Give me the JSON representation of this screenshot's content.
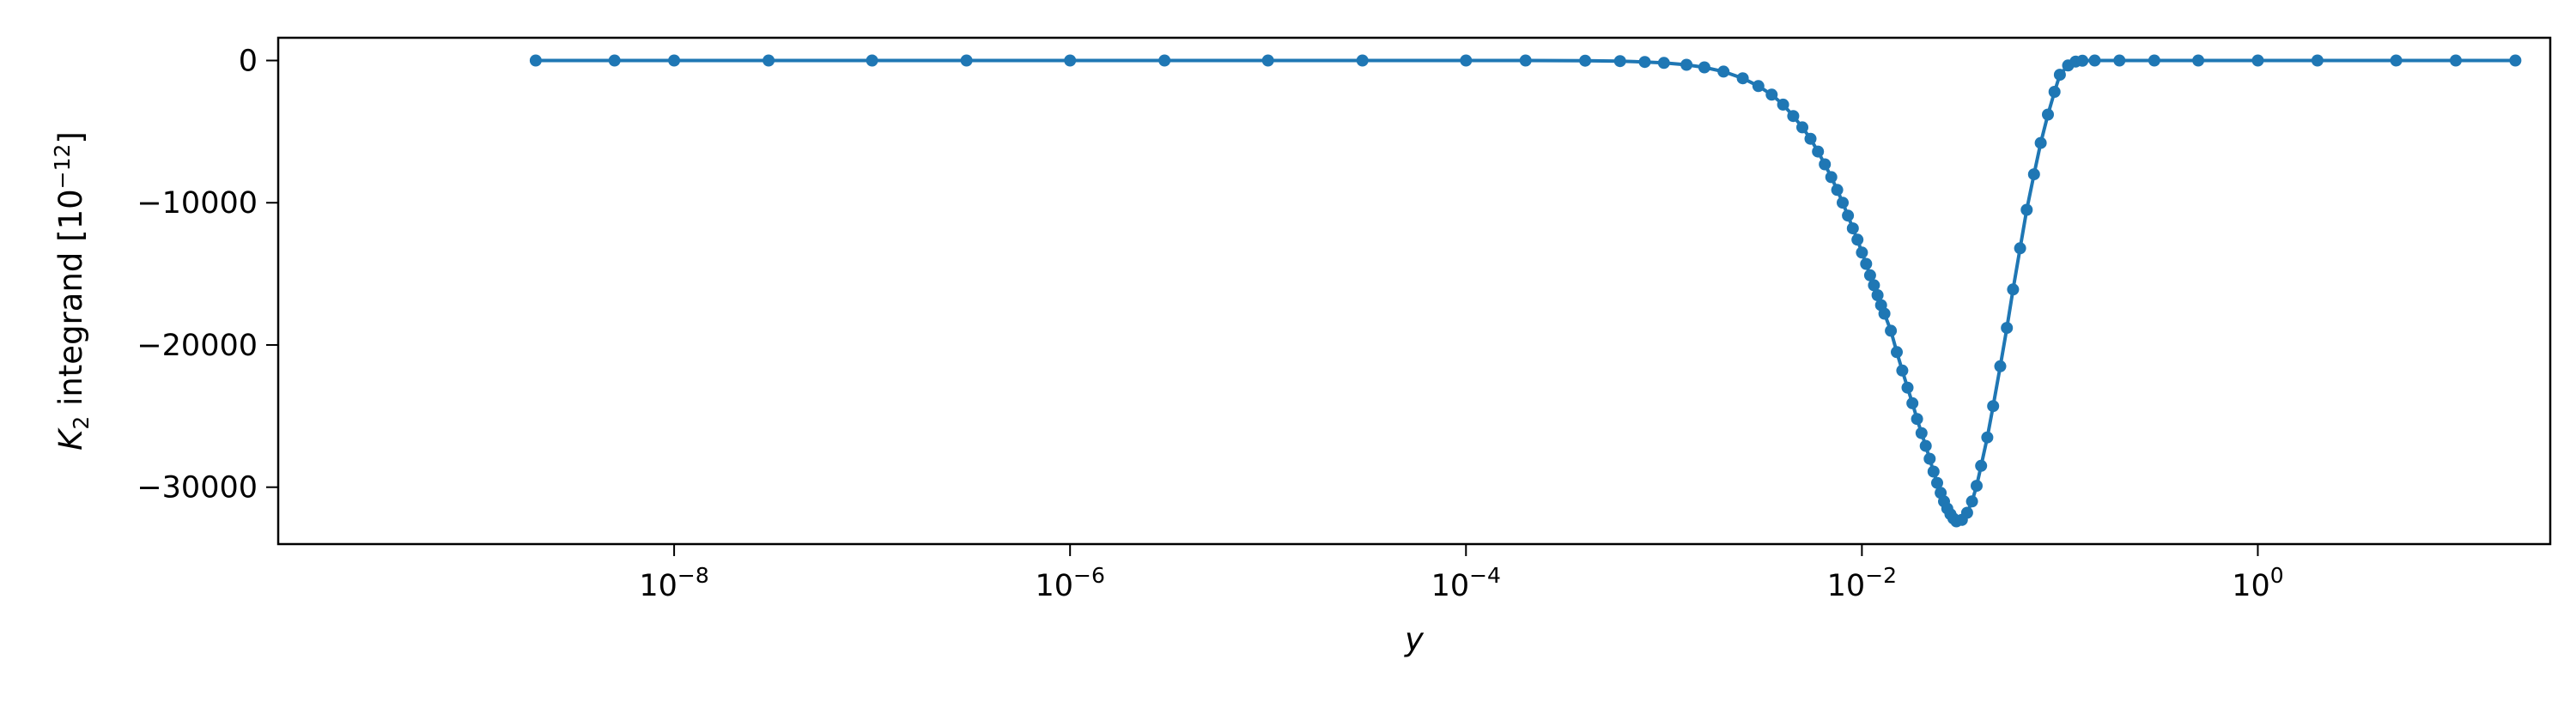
{
  "chart_data": {
    "type": "line",
    "xlabel": "y",
    "ylabel": "K",
    "ylabel_subscript": "2",
    "ylabel_rest": " integrand [10",
    "ylabel_exponent": "−12",
    "ylabel_close": "]",
    "x_scale": "log",
    "xlim": [
      1e-10,
      30.0
    ],
    "ylim": [
      -34000,
      1600
    ],
    "xticks": [
      {
        "value": 1e-08,
        "base": "10",
        "exp": "−8"
      },
      {
        "value": 1e-06,
        "base": "10",
        "exp": "−6"
      },
      {
        "value": 0.0001,
        "base": "10",
        "exp": "−4"
      },
      {
        "value": 0.01,
        "base": "10",
        "exp": "−2"
      },
      {
        "value": 1,
        "base": "10",
        "exp": "0"
      }
    ],
    "yticks": [
      {
        "value": 0,
        "label": "0"
      },
      {
        "value": -10000,
        "label": "−10000"
      },
      {
        "value": -20000,
        "label": "−20000"
      },
      {
        "value": -30000,
        "label": "−30000"
      }
    ],
    "grid": false,
    "legend": "none",
    "series": [
      {
        "color": "#1f77b4",
        "marker": "circle",
        "x": [
          2e-09,
          5e-09,
          1e-08,
          3e-08,
          1e-07,
          3e-07,
          1e-06,
          3e-06,
          1e-05,
          3e-05,
          0.0001,
          0.0002,
          0.0004,
          0.0006,
          0.0008,
          0.001,
          0.0013,
          0.0016,
          0.002,
          0.0025,
          0.003,
          0.0035,
          0.004,
          0.0045,
          0.005,
          0.0055,
          0.006,
          0.0065,
          0.007,
          0.0075,
          0.008,
          0.0085,
          0.009,
          0.0095,
          0.01,
          0.0105,
          0.011,
          0.0115,
          0.012,
          0.0125,
          0.013,
          0.014,
          0.015,
          0.016,
          0.017,
          0.018,
          0.019,
          0.02,
          0.021,
          0.022,
          0.023,
          0.024,
          0.025,
          0.026,
          0.027,
          0.028,
          0.029,
          0.03,
          0.032,
          0.034,
          0.036,
          0.038,
          0.04,
          0.043,
          0.046,
          0.05,
          0.054,
          0.058,
          0.063,
          0.068,
          0.074,
          0.08,
          0.087,
          0.094,
          0.1,
          0.11,
          0.12,
          0.13,
          0.15,
          0.2,
          0.3,
          0.5,
          1,
          2,
          5,
          10,
          20
        ],
        "y": [
          0,
          0,
          0,
          0,
          0,
          0,
          0,
          0,
          0,
          0,
          0,
          0,
          -10,
          -40,
          -100,
          -170,
          -300,
          -480,
          -780,
          -1250,
          -1800,
          -2400,
          -3100,
          -3900,
          -4700,
          -5500,
          -6400,
          -7300,
          -8200,
          -9100,
          -10000,
          -10900,
          -11800,
          -12600,
          -13500,
          -14300,
          -15100,
          -15800,
          -16500,
          -17200,
          -17800,
          -19000,
          -20500,
          -21800,
          -23000,
          -24100,
          -25200,
          -26200,
          -27100,
          -28000,
          -28900,
          -29700,
          -30400,
          -31000,
          -31500,
          -31900,
          -32200,
          -32400,
          -32300,
          -31800,
          -31000,
          -29900,
          -28500,
          -26500,
          -24300,
          -21500,
          -18800,
          -16100,
          -13200,
          -10500,
          -8000,
          -5800,
          -3800,
          -2200,
          -1000,
          -350,
          -80,
          -15,
          0,
          0,
          0,
          0,
          0,
          0,
          0,
          0,
          0
        ]
      }
    ]
  }
}
